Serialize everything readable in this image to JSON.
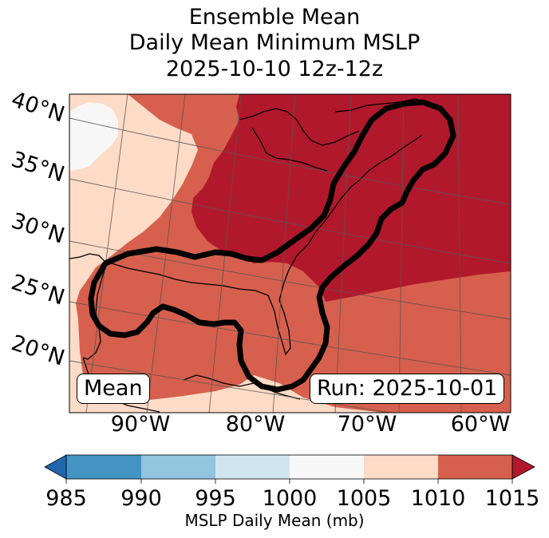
{
  "title": {
    "line1": "Ensemble Mean",
    "line2": "Daily Mean Minimum MSLP",
    "line3": "2025-10-10 12z-12z"
  },
  "map": {
    "lat_labels": [
      "40°N",
      "35°N",
      "30°N",
      "25°N",
      "20°N"
    ],
    "lon_labels": [
      "90°W",
      "80°W",
      "70°W",
      "60°W"
    ],
    "fill_colors": {
      "1000-1005": "#f7f7f7",
      "1005-1010": "#fddbc7",
      "1010-1015": "#d6604d",
      "1015+": "#b2182b"
    },
    "mean_label": "Mean",
    "run_label": "Run: 2025-10-01"
  },
  "colorbar": {
    "ticks": [
      "985",
      "990",
      "995",
      "1000",
      "1005",
      "1010",
      "1015"
    ],
    "colors": [
      "#2166ac",
      "#4393c3",
      "#92c5de",
      "#d1e5f0",
      "#f7f7f7",
      "#fddbc7",
      "#d6604d",
      "#b2182b"
    ],
    "label": "MSLP Daily Mean (mb)"
  }
}
